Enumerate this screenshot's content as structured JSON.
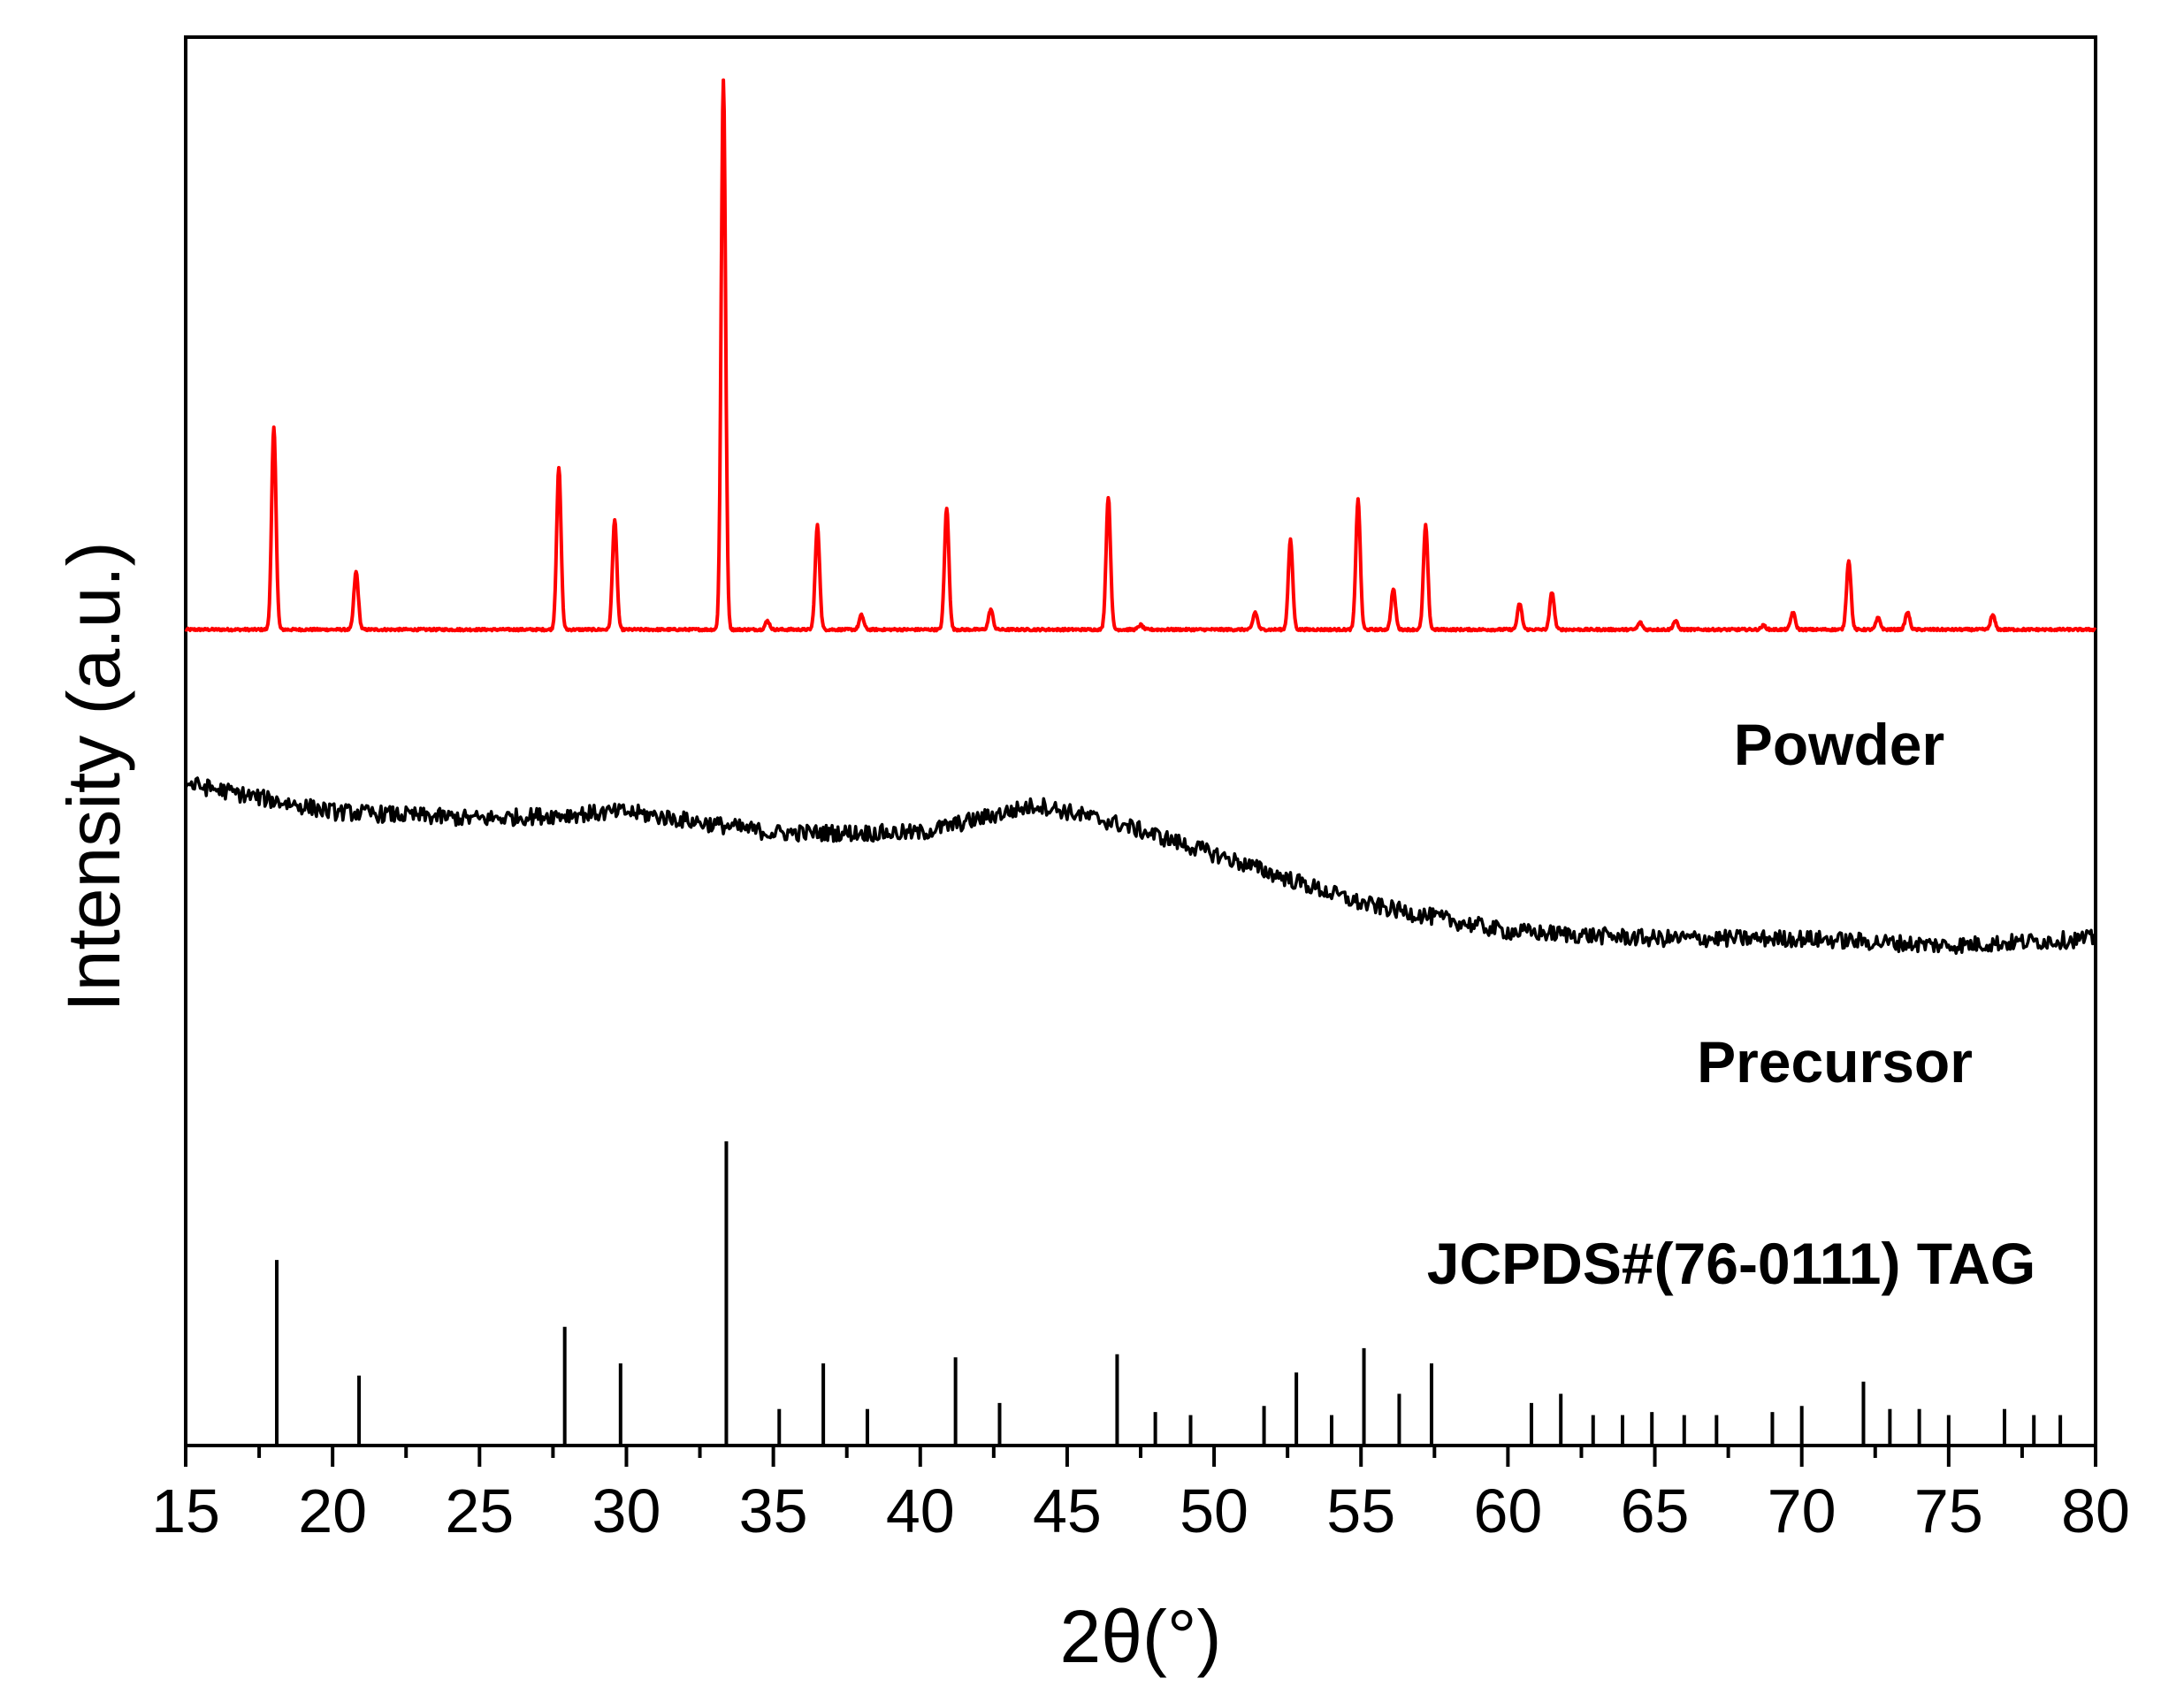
{
  "chart_data": {
    "type": "line",
    "title": "",
    "xlabel": "2θ(°)",
    "ylabel": "Intensity (a.u.)",
    "xlim": [
      15,
      80
    ],
    "x_ticks": [
      15,
      20,
      25,
      30,
      35,
      40,
      45,
      50,
      55,
      60,
      65,
      70,
      75,
      80
    ],
    "grid": false,
    "y_tick_labels_shown": false,
    "series": [
      {
        "name": "Powder",
        "color": "#ff0000",
        "style": "diffractogram",
        "baseline": 0.035,
        "peaks": [
          [
            18.0,
            0.35
          ],
          [
            20.8,
            0.1
          ],
          [
            27.7,
            0.28
          ],
          [
            29.6,
            0.19
          ],
          [
            33.3,
            0.95
          ],
          [
            34.8,
            0.015
          ],
          [
            36.5,
            0.18
          ],
          [
            38.0,
            0.025
          ],
          [
            40.9,
            0.21
          ],
          [
            42.4,
            0.035
          ],
          [
            46.4,
            0.23
          ],
          [
            47.5,
            0.008
          ],
          [
            51.4,
            0.03
          ],
          [
            52.6,
            0.155
          ],
          [
            54.9,
            0.225
          ],
          [
            56.1,
            0.07
          ],
          [
            57.2,
            0.18
          ],
          [
            60.4,
            0.045
          ],
          [
            61.5,
            0.065
          ],
          [
            64.5,
            0.012
          ],
          [
            65.7,
            0.015
          ],
          [
            68.7,
            0.007
          ],
          [
            69.7,
            0.03
          ],
          [
            71.6,
            0.12
          ],
          [
            72.6,
            0.02
          ],
          [
            73.6,
            0.03
          ],
          [
            76.5,
            0.025
          ]
        ]
      },
      {
        "name": "Precursor",
        "color": "#000000",
        "style": "amorphous",
        "profile": [
          [
            15,
            0.47
          ],
          [
            20,
            0.45
          ],
          [
            25,
            0.445
          ],
          [
            30,
            0.45
          ],
          [
            35,
            0.435
          ],
          [
            40,
            0.435
          ],
          [
            44,
            0.455
          ],
          [
            47,
            0.44
          ],
          [
            50,
            0.42
          ],
          [
            55,
            0.385
          ],
          [
            60,
            0.365
          ],
          [
            65,
            0.36
          ],
          [
            70,
            0.36
          ],
          [
            75,
            0.355
          ],
          [
            80,
            0.36
          ]
        ]
      },
      {
        "name": "JCPDS#(76-0111) TAG",
        "color": "#000000",
        "style": "sticks",
        "sticks": [
          [
            18.1,
            0.61
          ],
          [
            20.9,
            0.23
          ],
          [
            27.9,
            0.39
          ],
          [
            29.8,
            0.27
          ],
          [
            33.4,
            1.0
          ],
          [
            35.2,
            0.12
          ],
          [
            36.7,
            0.27
          ],
          [
            38.2,
            0.12
          ],
          [
            41.2,
            0.29
          ],
          [
            42.7,
            0.14
          ],
          [
            46.7,
            0.3
          ],
          [
            48.0,
            0.11
          ],
          [
            49.2,
            0.1
          ],
          [
            51.7,
            0.13
          ],
          [
            52.8,
            0.24
          ],
          [
            54.0,
            0.1
          ],
          [
            55.1,
            0.32
          ],
          [
            56.3,
            0.17
          ],
          [
            57.4,
            0.27
          ],
          [
            60.8,
            0.14
          ],
          [
            61.8,
            0.17
          ],
          [
            62.9,
            0.1
          ],
          [
            63.9,
            0.1
          ],
          [
            64.9,
            0.11
          ],
          [
            66.0,
            0.1
          ],
          [
            67.1,
            0.1
          ],
          [
            69.0,
            0.11
          ],
          [
            70.0,
            0.13
          ],
          [
            72.1,
            0.21
          ],
          [
            73.0,
            0.12
          ],
          [
            74.0,
            0.12
          ],
          [
            75.0,
            0.1
          ],
          [
            76.9,
            0.12
          ],
          [
            77.9,
            0.1
          ],
          [
            78.8,
            0.1
          ]
        ]
      }
    ]
  }
}
